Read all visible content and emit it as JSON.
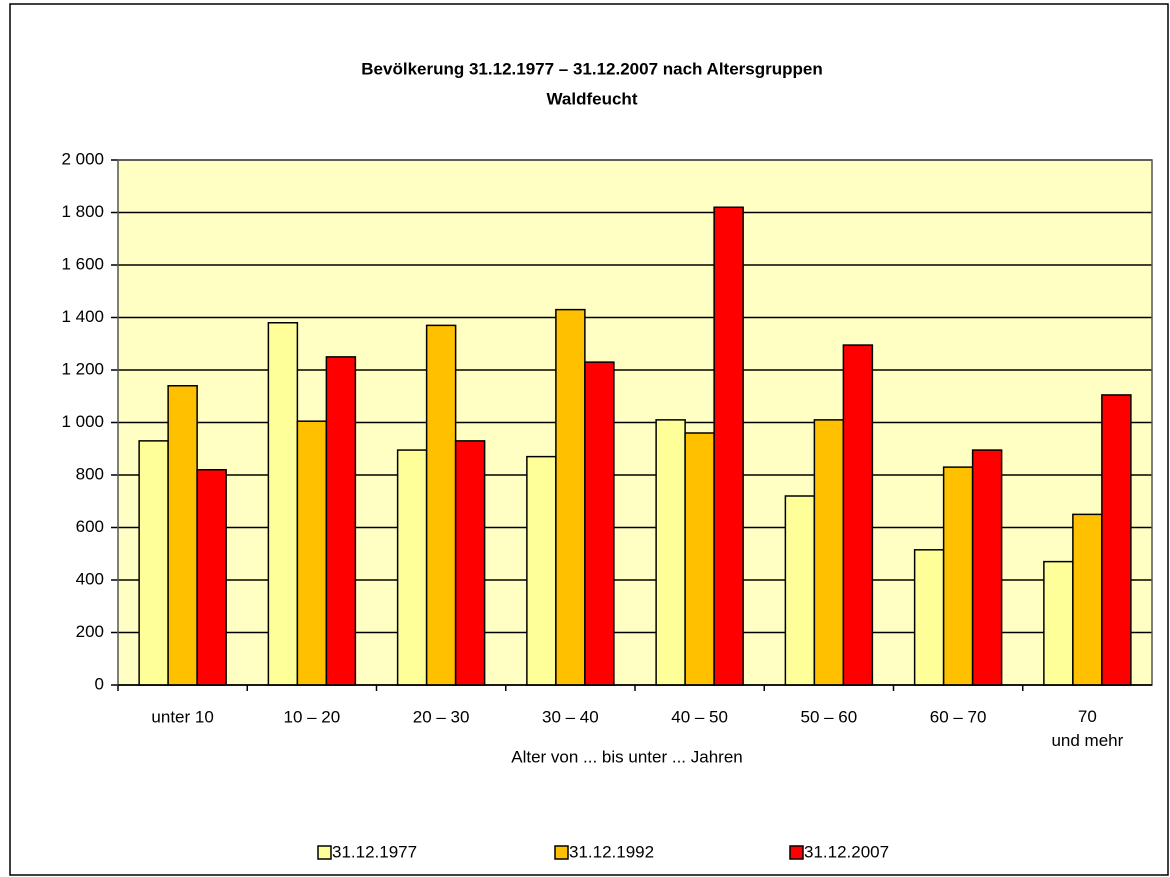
{
  "chart_data": {
    "type": "bar",
    "title": "Bevölkerung 31.12.1977 – 31.12.2007 nach Altersgruppen",
    "subtitle": "Waldfeucht",
    "x_label": "Alter von ... bis unter ... Jahren",
    "categories": [
      "unter 10",
      "10 – 20",
      "20 – 30",
      "30 – 40",
      "40 – 50",
      "50 – 60",
      "60 – 70",
      "70 und mehr"
    ],
    "series": [
      {
        "name": "31.12.1977",
        "color": "#ffff99",
        "values": [
          930,
          1380,
          895,
          870,
          1010,
          720,
          515,
          470
        ]
      },
      {
        "name": "31.12.1992",
        "color": "#ffc000",
        "values": [
          1140,
          1005,
          1370,
          1430,
          960,
          1010,
          830,
          650
        ]
      },
      {
        "name": "31.12.2007",
        "color": "#ff0000",
        "values": [
          820,
          1250,
          930,
          1230,
          1820,
          1295,
          895,
          1105
        ]
      }
    ],
    "ylim": [
      0,
      2000
    ],
    "yticks": [
      0,
      200,
      400,
      600,
      800,
      {
        "value": 1000,
        "label": "1 000"
      },
      {
        "value": 1200,
        "label": "1 200"
      },
      {
        "value": 1400,
        "label": "1 400"
      },
      {
        "value": 1600,
        "label": "1 600"
      },
      {
        "value": 1800,
        "label": "1 800"
      },
      {
        "value": 2000,
        "label": "2 000"
      }
    ],
    "grid": true,
    "legend": "bottom"
  }
}
